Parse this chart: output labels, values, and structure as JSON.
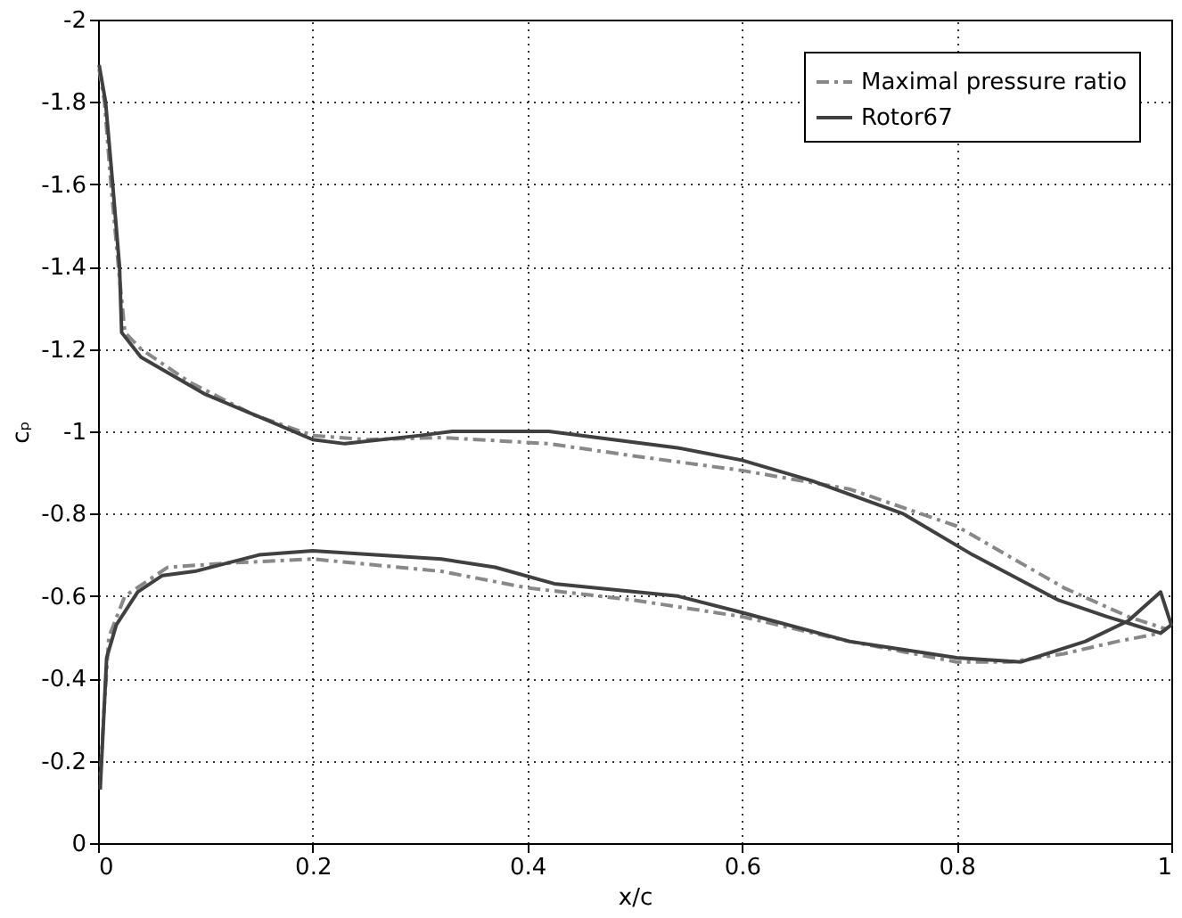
{
  "chart_data": {
    "type": "line",
    "xlabel": "x/c",
    "ylabel": "cₚ",
    "xlim": [
      0,
      1
    ],
    "ylim": [
      0,
      -2
    ],
    "xticks": [
      0,
      0.2,
      0.4,
      0.6,
      0.8,
      1
    ],
    "yticks": [
      -2,
      -1.8,
      -1.6,
      -1.4,
      -1.2,
      -1,
      -0.8,
      -0.6,
      -0.4,
      -0.2,
      0
    ],
    "grid": true,
    "legend": "top right",
    "marker": "none",
    "series": [
      {
        "name": "Maximal pressure ratio",
        "color": "#888888",
        "line_style": "dashed",
        "x": [
          0.001,
          0.006,
          0.012,
          0.019,
          0.025,
          0.04,
          0.085,
          0.145,
          0.2,
          0.25,
          0.32,
          0.42,
          0.5,
          0.6,
          0.7,
          0.8,
          0.9,
          0.96,
          0.995,
          0.99,
          0.95,
          0.9,
          0.85,
          0.8,
          0.7,
          0.6,
          0.5,
          0.4,
          0.32,
          0.2,
          0.12,
          0.065,
          0.025,
          0.01,
          0.005,
          0.002
        ],
        "values": [
          -1.88,
          -1.8,
          -1.6,
          -1.4,
          -1.24,
          -1.2,
          -1.12,
          -1.04,
          -0.99,
          -0.98,
          -0.985,
          -0.97,
          -0.94,
          -0.905,
          -0.86,
          -0.77,
          -0.62,
          -0.55,
          -0.52,
          -0.51,
          -0.49,
          -0.46,
          -0.44,
          -0.44,
          -0.49,
          -0.55,
          -0.59,
          -0.62,
          -0.66,
          -0.69,
          -0.68,
          -0.67,
          -0.6,
          -0.5,
          -0.3,
          -0.15
        ]
      },
      {
        "name": "Rotor67",
        "color": "#404040",
        "line_style": "solid",
        "x": [
          0.001,
          0.007,
          0.013,
          0.02,
          0.022,
          0.04,
          0.1,
          0.155,
          0.2,
          0.23,
          0.3,
          0.33,
          0.42,
          0.48,
          0.54,
          0.6,
          0.665,
          0.75,
          0.815,
          0.895,
          0.94,
          0.99,
          1.0,
          0.99,
          0.96,
          0.92,
          0.86,
          0.8,
          0.7,
          0.6,
          0.54,
          0.425,
          0.37,
          0.32,
          0.2,
          0.15,
          0.09,
          0.06,
          0.037,
          0.017,
          0.008,
          0.002
        ],
        "values": [
          -1.89,
          -1.8,
          -1.62,
          -1.4,
          -1.24,
          -1.18,
          -1.09,
          -1.03,
          -0.98,
          -0.97,
          -0.99,
          -1.0,
          -1.0,
          -0.98,
          -0.96,
          -0.93,
          -0.88,
          -0.8,
          -0.7,
          -0.59,
          -0.55,
          -0.51,
          -0.53,
          -0.61,
          -0.54,
          -0.49,
          -0.44,
          -0.45,
          -0.49,
          -0.56,
          -0.6,
          -0.63,
          -0.67,
          -0.69,
          -0.71,
          -0.7,
          -0.66,
          -0.65,
          -0.61,
          -0.53,
          -0.45,
          -0.13
        ]
      }
    ]
  }
}
